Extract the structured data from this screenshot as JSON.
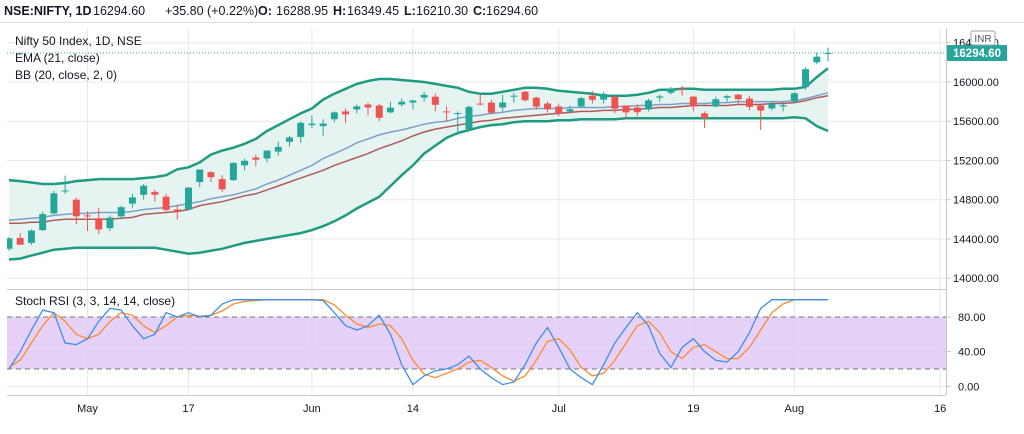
{
  "header": {
    "symbol": "NSE:NIFTY, 1D",
    "last": "16294.60",
    "change": "+35.80 (+0.22%)",
    "o_label": "O:",
    "o_value": "16288.95",
    "h_label": "H:",
    "h_value": "16349.45",
    "l_label": "L:",
    "l_value": "16210.30",
    "c_label": "C:",
    "c_value": "16294.60"
  },
  "legend": {
    "instrument": "Nifty 50 Index, 1D, NSE",
    "ema": "EMA (21, close)",
    "bb": "BB (20, close, 2, 0)",
    "stoch": "Stoch RSI (3, 3, 14, 14, close)"
  },
  "currency_badge": "INR",
  "last_price_tag": "16294.60",
  "price_axis_labels": [
    "16400.00",
    "16000.00",
    "15600.00",
    "15200.00",
    "14800.00",
    "14400.00",
    "14000.00"
  ],
  "stoch_axis_labels": [
    "80.00",
    "40.00",
    "0.00"
  ],
  "x_axis_labels": [
    "May",
    "17",
    "Jun",
    "14",
    "Jul",
    "19",
    "Aug",
    "16"
  ],
  "colors": {
    "up": "#26a69a",
    "down": "#ef5350",
    "bb_line": "#1f9a83",
    "bb_fill": "#e6f4f1",
    "ema": "#b05b5b",
    "basis": "#7d9fc9",
    "stoch_k": "#3f8fe8",
    "stoch_d": "#ff8a2a",
    "stoch_band": "#e2c9f7",
    "grid": "#e8e8e8"
  },
  "chart_data": [
    {
      "type": "candlestick",
      "title": "Nifty 50 Index, 1D, NSE",
      "ylim": [
        13900,
        16550
      ],
      "x": [
        "2021-04-22",
        "2021-04-23",
        "2021-04-26",
        "2021-04-27",
        "2021-04-28",
        "2021-04-29",
        "2021-04-30",
        "2021-05-03",
        "2021-05-04",
        "2021-05-05",
        "2021-05-06",
        "2021-05-07",
        "2021-05-10",
        "2021-05-11",
        "2021-05-12",
        "2021-05-14",
        "2021-05-17",
        "2021-05-18",
        "2021-05-19",
        "2021-05-20",
        "2021-05-21",
        "2021-05-24",
        "2021-05-25",
        "2021-05-26",
        "2021-05-27",
        "2021-05-28",
        "2021-05-31",
        "2021-06-01",
        "2021-06-02",
        "2021-06-03",
        "2021-06-04",
        "2021-06-07",
        "2021-06-08",
        "2021-06-09",
        "2021-06-10",
        "2021-06-11",
        "2021-06-14",
        "2021-06-15",
        "2021-06-16",
        "2021-06-17",
        "2021-06-18",
        "2021-06-21",
        "2021-06-22",
        "2021-06-23",
        "2021-06-24",
        "2021-06-25",
        "2021-06-28",
        "2021-06-29",
        "2021-06-30",
        "2021-07-01",
        "2021-07-02",
        "2021-07-05",
        "2021-07-06",
        "2021-07-07",
        "2021-07-08",
        "2021-07-09",
        "2021-07-12",
        "2021-07-13",
        "2021-07-14",
        "2021-07-15",
        "2021-07-16",
        "2021-07-19",
        "2021-07-20",
        "2021-07-22",
        "2021-07-23",
        "2021-07-26",
        "2021-07-27",
        "2021-07-28",
        "2021-07-29",
        "2021-07-30",
        "2021-08-02",
        "2021-08-03",
        "2021-08-04",
        "2021-08-05"
      ],
      "ohlc": [
        [
          14300,
          14420,
          14280,
          14406
        ],
        [
          14410,
          14460,
          14350,
          14341
        ],
        [
          14360,
          14500,
          14340,
          14485
        ],
        [
          14490,
          14680,
          14480,
          14653
        ],
        [
          14660,
          14890,
          14650,
          14865
        ],
        [
          14890,
          15045,
          14860,
          14894
        ],
        [
          14800,
          14820,
          14550,
          14631
        ],
        [
          14640,
          14680,
          14480,
          14634
        ],
        [
          14610,
          14720,
          14450,
          14496
        ],
        [
          14510,
          14640,
          14480,
          14618
        ],
        [
          14630,
          14740,
          14600,
          14724
        ],
        [
          14760,
          14860,
          14720,
          14823
        ],
        [
          14850,
          14960,
          14800,
          14942
        ],
        [
          14880,
          14900,
          14780,
          14850
        ],
        [
          14830,
          14860,
          14680,
          14696
        ],
        [
          14700,
          14750,
          14600,
          14677
        ],
        [
          14700,
          14930,
          14690,
          14923
        ],
        [
          14980,
          15100,
          14930,
          15108
        ],
        [
          15080,
          15090,
          14980,
          15030
        ],
        [
          15010,
          15050,
          14880,
          14906
        ],
        [
          15000,
          15180,
          14990,
          15175
        ],
        [
          15150,
          15220,
          15100,
          15197
        ],
        [
          15230,
          15260,
          15140,
          15208
        ],
        [
          15220,
          15300,
          15180,
          15301
        ],
        [
          15290,
          15390,
          15250,
          15338
        ],
        [
          15390,
          15450,
          15340,
          15435
        ],
        [
          15440,
          15600,
          15380,
          15583
        ],
        [
          15560,
          15660,
          15530,
          15575
        ],
        [
          15550,
          15620,
          15450,
          15576
        ],
        [
          15620,
          15700,
          15590,
          15690
        ],
        [
          15700,
          15730,
          15580,
          15670
        ],
        [
          15720,
          15770,
          15680,
          15751
        ],
        [
          15770,
          15790,
          15660,
          15740
        ],
        [
          15760,
          15780,
          15600,
          15635
        ],
        [
          15690,
          15800,
          15680,
          15738
        ],
        [
          15770,
          15830,
          15750,
          15799
        ],
        [
          15790,
          15820,
          15720,
          15811
        ],
        [
          15840,
          15900,
          15800,
          15869
        ],
        [
          15850,
          15880,
          15700,
          15767
        ],
        [
          15700,
          15750,
          15600,
          15691
        ],
        [
          15680,
          15700,
          15460,
          15683
        ],
        [
          15520,
          15760,
          15500,
          15746
        ],
        [
          15780,
          15880,
          15760,
          15773
        ],
        [
          15790,
          15820,
          15670,
          15687
        ],
        [
          15740,
          15870,
          15700,
          15790
        ],
        [
          15860,
          15890,
          15790,
          15860
        ],
        [
          15900,
          15910,
          15800,
          15814
        ],
        [
          15840,
          15850,
          15720,
          15748
        ],
        [
          15780,
          15800,
          15690,
          15721
        ],
        [
          15750,
          15780,
          15650,
          15680
        ],
        [
          15700,
          15760,
          15680,
          15722
        ],
        [
          15750,
          15850,
          15740,
          15835
        ],
        [
          15860,
          15910,
          15780,
          15818
        ],
        [
          15820,
          15900,
          15780,
          15879
        ],
        [
          15850,
          15860,
          15680,
          15728
        ],
        [
          15760,
          15760,
          15630,
          15690
        ],
        [
          15740,
          15770,
          15650,
          15692
        ],
        [
          15720,
          15830,
          15700,
          15812
        ],
        [
          15840,
          15870,
          15800,
          15853
        ],
        [
          15890,
          15950,
          15870,
          15924
        ],
        [
          15930,
          15960,
          15860,
          15923
        ],
        [
          15850,
          15860,
          15700,
          15752
        ],
        [
          15680,
          15700,
          15530,
          15632
        ],
        [
          15750,
          15850,
          15740,
          15824
        ],
        [
          15840,
          15870,
          15800,
          15856
        ],
        [
          15870,
          15880,
          15780,
          15824
        ],
        [
          15830,
          15860,
          15710,
          15746
        ],
        [
          15760,
          15780,
          15510,
          15709
        ],
        [
          15730,
          15800,
          15710,
          15778
        ],
        [
          15750,
          15800,
          15700,
          15763
        ],
        [
          15800,
          15900,
          15780,
          15885
        ],
        [
          15950,
          16150,
          15920,
          16130
        ],
        [
          16200,
          16300,
          16180,
          16258
        ],
        [
          16290,
          16350,
          16210,
          16295
        ]
      ],
      "series": [
        {
          "name": "BB upper",
          "values": [
            15000,
            14990,
            14975,
            14960,
            14960,
            14970,
            14990,
            15000,
            15010,
            15010,
            15010,
            15010,
            15020,
            15030,
            15050,
            15110,
            15130,
            15180,
            15260,
            15300,
            15330,
            15370,
            15420,
            15500,
            15560,
            15620,
            15680,
            15730,
            15820,
            15880,
            15930,
            15980,
            16010,
            16030,
            16030,
            16020,
            16010,
            16000,
            15980,
            15960,
            15940,
            15900,
            15880,
            15880,
            15900,
            15920,
            15940,
            15940,
            15930,
            15910,
            15900,
            15890,
            15880,
            15860,
            15860,
            15860,
            15870,
            15890,
            15920,
            15920,
            15930,
            15930,
            15920,
            15920,
            15920,
            15920,
            15920,
            15920,
            15920,
            15930,
            15930,
            15950,
            16050,
            16140
          ]
        },
        {
          "name": "BB basis",
          "values": [
            14590,
            14600,
            14610,
            14620,
            14640,
            14650,
            14660,
            14660,
            14670,
            14670,
            14670,
            14680,
            14700,
            14710,
            14720,
            14740,
            14760,
            14780,
            14810,
            14830,
            14850,
            14880,
            14910,
            14960,
            15000,
            15050,
            15100,
            15150,
            15220,
            15270,
            15320,
            15380,
            15420,
            15460,
            15490,
            15510,
            15540,
            15570,
            15590,
            15600,
            15630,
            15650,
            15660,
            15680,
            15690,
            15710,
            15720,
            15730,
            15730,
            15730,
            15740,
            15740,
            15740,
            15740,
            15750,
            15750,
            15760,
            15760,
            15770,
            15770,
            15780,
            15780,
            15780,
            15790,
            15790,
            15800,
            15800,
            15800,
            15800,
            15800,
            15810,
            15830,
            15860,
            15890
          ]
        },
        {
          "name": "BB lower",
          "values": [
            14190,
            14200,
            14230,
            14260,
            14290,
            14300,
            14310,
            14310,
            14310,
            14310,
            14310,
            14310,
            14310,
            14310,
            14290,
            14270,
            14250,
            14260,
            14280,
            14300,
            14330,
            14360,
            14380,
            14400,
            14420,
            14440,
            14460,
            14490,
            14530,
            14580,
            14640,
            14710,
            14770,
            14830,
            14940,
            15050,
            15150,
            15270,
            15350,
            15430,
            15480,
            15510,
            15540,
            15560,
            15570,
            15590,
            15600,
            15600,
            15600,
            15610,
            15610,
            15620,
            15620,
            15620,
            15620,
            15630,
            15630,
            15630,
            15630,
            15630,
            15630,
            15630,
            15630,
            15630,
            15630,
            15630,
            15630,
            15630,
            15630,
            15630,
            15640,
            15630,
            15550,
            15500
          ]
        },
        {
          "name": "EMA (21, close)",
          "values": [
            14560,
            14560,
            14570,
            14570,
            14590,
            14600,
            14600,
            14600,
            14600,
            14600,
            14610,
            14620,
            14650,
            14660,
            14670,
            14680,
            14700,
            14740,
            14760,
            14780,
            14810,
            14840,
            14860,
            14900,
            14940,
            14980,
            15020,
            15060,
            15100,
            15150,
            15190,
            15230,
            15270,
            15320,
            15360,
            15400,
            15450,
            15490,
            15520,
            15540,
            15560,
            15580,
            15600,
            15610,
            15630,
            15640,
            15650,
            15660,
            15670,
            15680,
            15690,
            15700,
            15700,
            15710,
            15710,
            15720,
            15720,
            15730,
            15740,
            15740,
            15750,
            15760,
            15760,
            15760,
            15760,
            15770,
            15770,
            15770,
            15780,
            15780,
            15790,
            15810,
            15840,
            15860
          ]
        }
      ]
    },
    {
      "type": "line",
      "title": "Stoch RSI (3, 3, 14, 14, close)",
      "ylim": [
        -10,
        110
      ],
      "x": [
        "2021-04-22",
        "2021-04-23",
        "2021-04-26",
        "2021-04-27",
        "2021-04-28",
        "2021-04-29",
        "2021-04-30",
        "2021-05-03",
        "2021-05-04",
        "2021-05-05",
        "2021-05-06",
        "2021-05-07",
        "2021-05-10",
        "2021-05-11",
        "2021-05-12",
        "2021-05-14",
        "2021-05-17",
        "2021-05-18",
        "2021-05-19",
        "2021-05-20",
        "2021-05-21",
        "2021-05-24",
        "2021-05-25",
        "2021-05-26",
        "2021-05-27",
        "2021-05-28",
        "2021-05-31",
        "2021-06-01",
        "2021-06-02",
        "2021-06-03",
        "2021-06-04",
        "2021-06-07",
        "2021-06-08",
        "2021-06-09",
        "2021-06-10",
        "2021-06-11",
        "2021-06-14",
        "2021-06-15",
        "2021-06-16",
        "2021-06-17",
        "2021-06-18",
        "2021-06-21",
        "2021-06-22",
        "2021-06-23",
        "2021-06-24",
        "2021-06-25",
        "2021-06-28",
        "2021-06-29",
        "2021-06-30",
        "2021-07-01",
        "2021-07-02",
        "2021-07-05",
        "2021-07-06",
        "2021-07-07",
        "2021-07-08",
        "2021-07-09",
        "2021-07-12",
        "2021-07-13",
        "2021-07-14",
        "2021-07-15",
        "2021-07-16",
        "2021-07-19",
        "2021-07-20",
        "2021-07-22",
        "2021-07-23",
        "2021-07-26",
        "2021-07-27",
        "2021-07-28",
        "2021-07-29",
        "2021-07-30",
        "2021-08-02",
        "2021-08-03",
        "2021-08-04",
        "2021-08-05"
      ],
      "levels": [
        80,
        20
      ],
      "series": [
        {
          "name": "K",
          "values": [
            20,
            40,
            65,
            88,
            85,
            50,
            48,
            55,
            75,
            90,
            88,
            70,
            55,
            60,
            85,
            80,
            85,
            80,
            82,
            95,
            100,
            100,
            100,
            100,
            100,
            100,
            100,
            100,
            99,
            85,
            70,
            65,
            70,
            82,
            60,
            25,
            2,
            12,
            18,
            20,
            25,
            35,
            20,
            10,
            2,
            5,
            25,
            50,
            68,
            45,
            20,
            10,
            2,
            25,
            50,
            68,
            85,
            70,
            38,
            22,
            45,
            55,
            40,
            30,
            28,
            40,
            62,
            90,
            100,
            100,
            100,
            100,
            100,
            100
          ]
        },
        {
          "name": "D",
          "values": [
            22,
            30,
            50,
            70,
            85,
            75,
            60,
            55,
            60,
            75,
            85,
            82,
            70,
            62,
            70,
            80,
            82,
            81,
            82,
            87,
            95,
            98,
            99,
            100,
            100,
            100,
            100,
            100,
            100,
            94,
            82,
            72,
            68,
            72,
            70,
            55,
            30,
            14,
            10,
            15,
            20,
            28,
            30,
            22,
            12,
            6,
            12,
            30,
            52,
            55,
            42,
            22,
            12,
            15,
            30,
            50,
            70,
            75,
            62,
            40,
            32,
            45,
            48,
            40,
            32,
            32,
            45,
            65,
            85,
            95,
            100,
            100,
            100,
            100
          ]
        }
      ]
    }
  ]
}
